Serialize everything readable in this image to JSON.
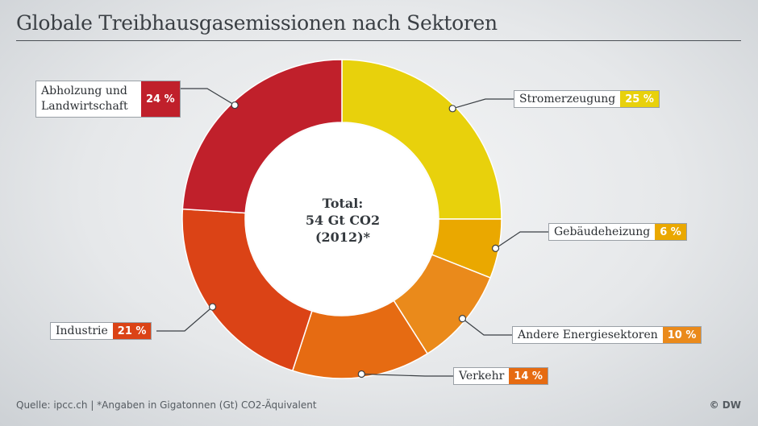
{
  "header": {
    "title": "Globale Treibhausgasemissionen nach Sektoren"
  },
  "center": {
    "line1": "Total:",
    "line2": "54 Gt CO2",
    "line3": "(2012)*"
  },
  "footer": {
    "source": "Quelle: ipcc.ch | *Angaben in Gigatonnen (Gt) CO2-Äquivalent",
    "credit": "© DW"
  },
  "chart_data": {
    "type": "pie",
    "donut": true,
    "title": "Globale Treibhausgasemissionen nach Sektoren",
    "total_label": "Total: 54 Gt CO2 (2012)*",
    "slices": [
      {
        "label": "Stromerzeugung",
        "value": 25,
        "display": "25 %",
        "color": "#e8d10c"
      },
      {
        "label": "Gebäudeheizung",
        "value": 6,
        "display": "6 %",
        "color": "#eaa800"
      },
      {
        "label": "Andere Energiesektoren",
        "value": 10,
        "display": "10 %",
        "color": "#ea8a1b"
      },
      {
        "label": "Verkehr",
        "value": 14,
        "display": "14 %",
        "color": "#e66b12"
      },
      {
        "label": "Industrie",
        "value": 21,
        "display": "21 %",
        "color": "#db4316"
      },
      {
        "label": "Abholzung und Landwirtschaft",
        "value": 24,
        "display": "24 %",
        "color": "#c0202b"
      }
    ]
  }
}
